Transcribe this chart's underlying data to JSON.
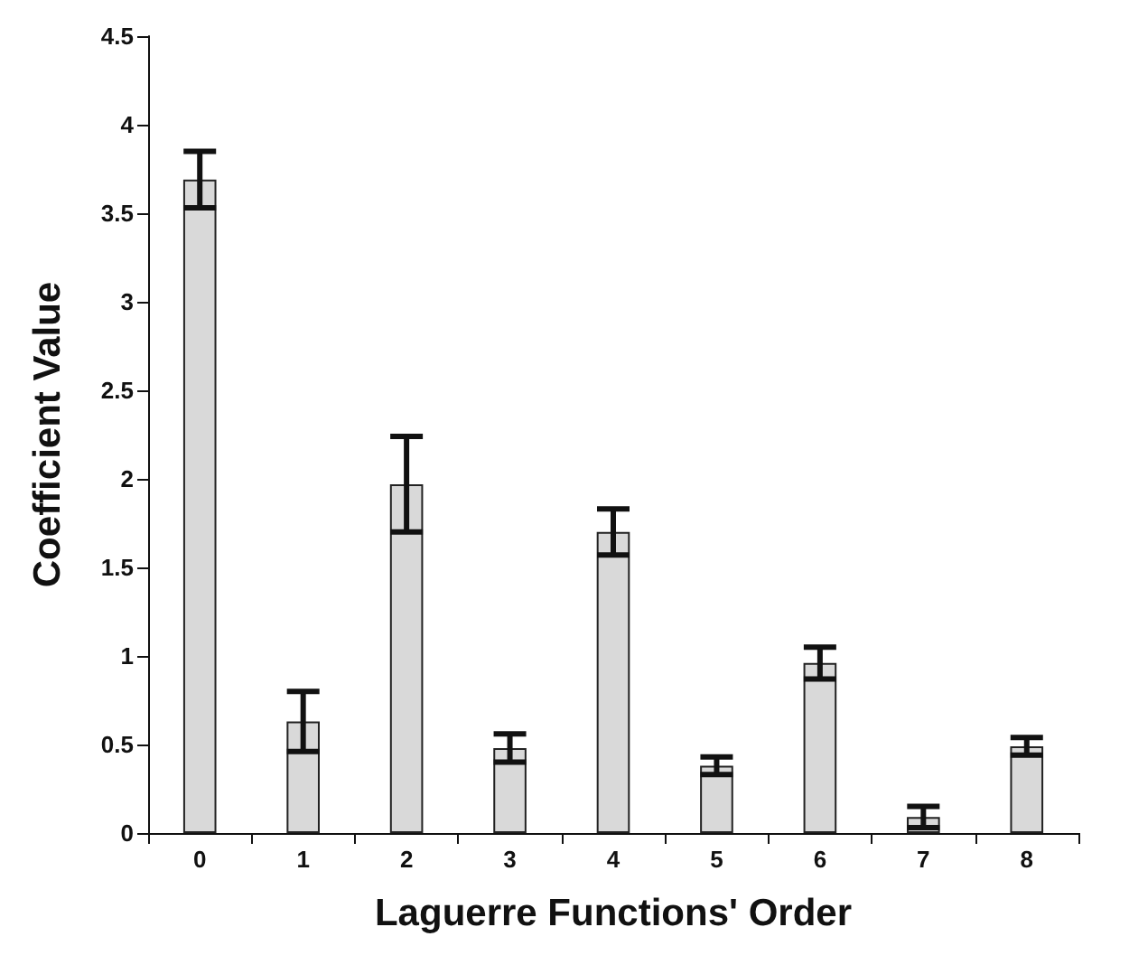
{
  "chart_data": {
    "type": "bar",
    "xlabel": "Laguerre Functions' Order",
    "ylabel": "Coefficient Value",
    "categories": [
      "0",
      "1",
      "2",
      "3",
      "4",
      "5",
      "6",
      "7",
      "8"
    ],
    "values": [
      3.69,
      0.63,
      1.97,
      0.48,
      1.7,
      0.38,
      0.96,
      0.09,
      0.49
    ],
    "errors": [
      0.16,
      0.17,
      0.27,
      0.08,
      0.13,
      0.05,
      0.09,
      0.06,
      0.05
    ],
    "color": "#d9d9d9",
    "ylim": [
      0,
      4.5
    ],
    "yticks": [
      0,
      0.5,
      1,
      1.5,
      2,
      2.5,
      3,
      3.5,
      4,
      4.5
    ],
    "grid": false
  }
}
